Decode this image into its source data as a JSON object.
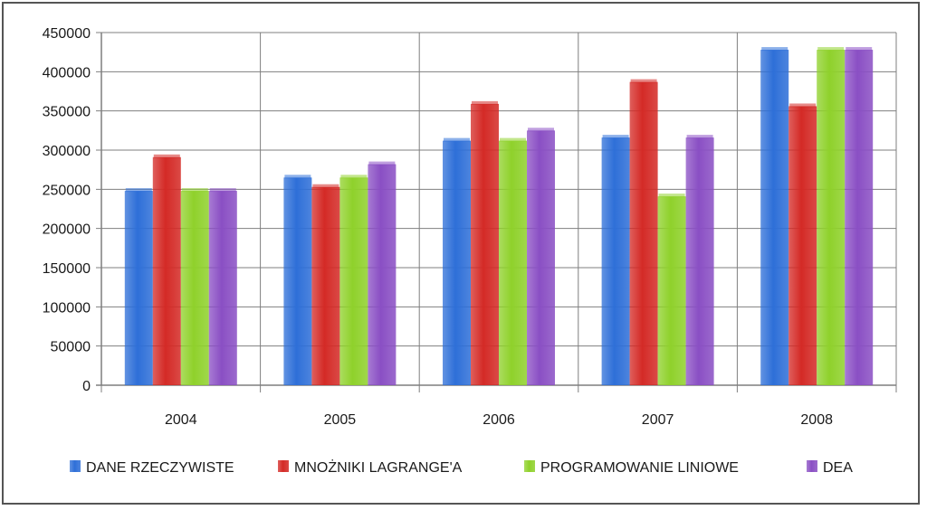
{
  "chart_data": {
    "type": "bar",
    "categories": [
      "2004",
      "2005",
      "2006",
      "2007",
      "2008"
    ],
    "series": [
      {
        "name": "DANE RZECZYWISTE",
        "color": "#2e6fd8",
        "values": [
          248000,
          265000,
          312000,
          316000,
          428000
        ]
      },
      {
        "name": "MNOŻNIKI LAGRANGE'A",
        "color": "#d42a26",
        "values": [
          291000,
          253000,
          359000,
          387000,
          356000
        ]
      },
      {
        "name": "PROGRAMOWANIE LINIOWE",
        "color": "#8fd12b",
        "values": [
          248000,
          265000,
          312000,
          241000,
          428000
        ]
      },
      {
        "name": "DEA",
        "color": "#8a4fc4",
        "values": [
          248000,
          282000,
          325000,
          316000,
          428000
        ]
      }
    ],
    "yticks": [
      "0",
      "50000",
      "100000",
      "150000",
      "200000",
      "250000",
      "300000",
      "350000",
      "400000",
      "450000"
    ],
    "ylim": [
      0,
      450000
    ],
    "grid": true,
    "legend_position": "bottom"
  }
}
